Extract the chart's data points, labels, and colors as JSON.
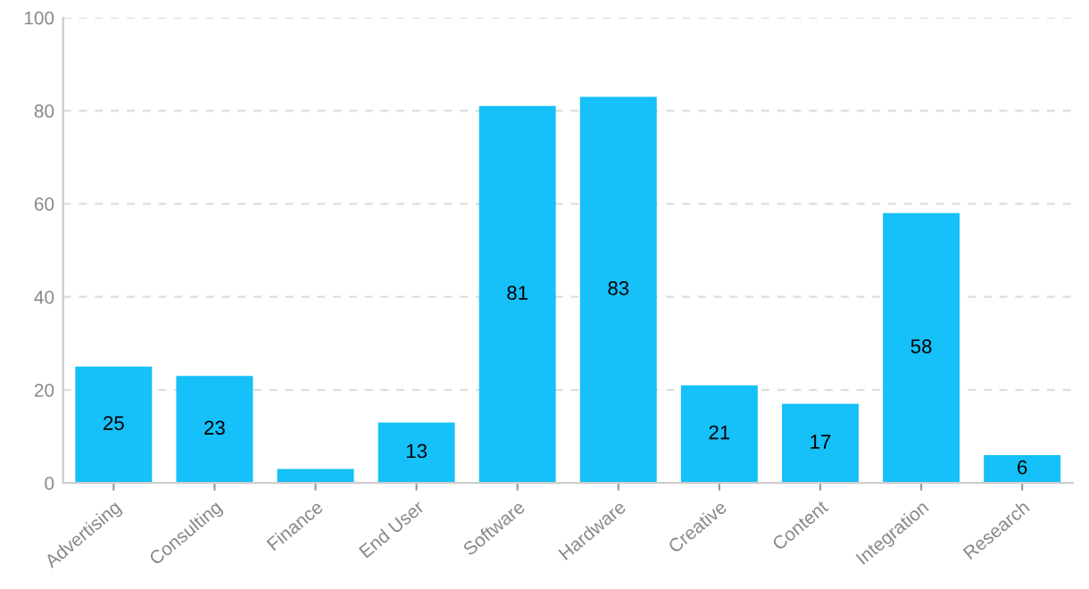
{
  "chart_data": {
    "type": "bar",
    "categories": [
      "Advertising",
      "Consulting",
      "Finance",
      "End User",
      "Software",
      "Hardware",
      "Creative",
      "Content",
      "Integration",
      "Research"
    ],
    "values": [
      25,
      23,
      3,
      13,
      81,
      83,
      21,
      17,
      58,
      6
    ],
    "value_labels": [
      "25",
      "23",
      null,
      "13",
      "81",
      "83",
      "21",
      "17",
      "58",
      "6"
    ],
    "color": "#16c0f8",
    "ylim": [
      0,
      100
    ],
    "yticks": [
      0,
      20,
      40,
      60,
      80,
      100
    ],
    "grid": "y"
  }
}
